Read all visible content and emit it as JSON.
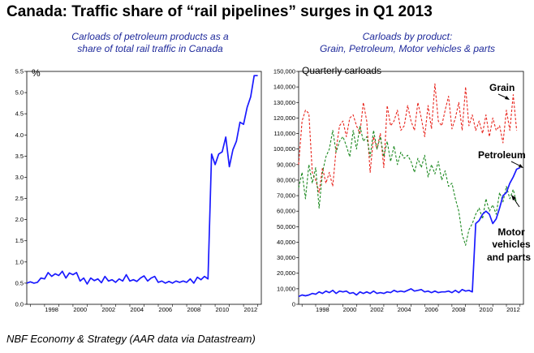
{
  "title": "Canada: Traffic share of “rail pipelines” surges in Q1 2013",
  "footer": "NBF Economy & Strategy (AAR data via Datastream)",
  "chart_data": [
    {
      "type": "line",
      "subtitle_line1": "Carloads of petroleum products as a",
      "subtitle_line2": "share of total rail traffic in Canada",
      "ylabel": "%",
      "ylim": [
        0,
        5.5
      ],
      "yticks": [
        "0.0",
        "0.5",
        "1.0",
        "1.5",
        "2.0",
        "2.5",
        "3.0",
        "3.5",
        "4.0",
        "4.5",
        "5.0",
        "5.5"
      ],
      "xticks": [
        "1998",
        "2000",
        "2002",
        "2004",
        "2006",
        "2008",
        "2010",
        "2012"
      ],
      "xlim": [
        1996.75,
        2013.25
      ],
      "color": "#1a1aff",
      "series": [
        {
          "name": "Petroleum share",
          "x": [
            1996.75,
            1997.0,
            1997.25,
            1997.5,
            1997.75,
            1998.0,
            1998.25,
            1998.5,
            1998.75,
            1999.0,
            1999.25,
            1999.5,
            1999.75,
            2000.0,
            2000.25,
            2000.5,
            2000.75,
            2001.0,
            2001.25,
            2001.5,
            2001.75,
            2002.0,
            2002.25,
            2002.5,
            2002.75,
            2003.0,
            2003.25,
            2003.5,
            2003.75,
            2004.0,
            2004.25,
            2004.5,
            2004.75,
            2005.0,
            2005.25,
            2005.5,
            2005.75,
            2006.0,
            2006.25,
            2006.5,
            2006.75,
            2007.0,
            2007.25,
            2007.5,
            2007.75,
            2008.0,
            2008.25,
            2008.5,
            2008.75,
            2009.0,
            2009.25,
            2009.5,
            2009.75,
            2010.0,
            2010.25,
            2010.5,
            2010.75,
            2011.0,
            2011.25,
            2011.5,
            2011.75,
            2012.0,
            2012.25,
            2012.5,
            2012.75,
            2013.0
          ],
          "values": [
            0.5,
            0.53,
            0.5,
            0.52,
            0.62,
            0.6,
            0.75,
            0.66,
            0.72,
            0.68,
            0.78,
            0.62,
            0.74,
            0.7,
            0.75,
            0.55,
            0.62,
            0.48,
            0.62,
            0.56,
            0.6,
            0.51,
            0.66,
            0.55,
            0.58,
            0.52,
            0.6,
            0.55,
            0.7,
            0.55,
            0.58,
            0.54,
            0.62,
            0.67,
            0.55,
            0.62,
            0.66,
            0.52,
            0.55,
            0.5,
            0.54,
            0.5,
            0.55,
            0.52,
            0.55,
            0.52,
            0.6,
            0.5,
            0.64,
            0.58,
            0.66,
            0.6,
            3.55,
            3.3,
            3.55,
            3.6,
            3.95,
            3.25,
            3.65,
            3.85,
            4.3,
            4.25,
            4.65,
            4.9,
            5.4,
            5.4
          ]
        }
      ]
    },
    {
      "type": "line",
      "subtitle_line1": "Carloads by product:",
      "subtitle_line2": "Grain, Petroleum, Motor vehicles & parts",
      "ylabel": "Quarterly carloads",
      "ylim": [
        0,
        150000
      ],
      "yticks": [
        "0",
        "10,000",
        "20,000",
        "30,000",
        "40,000",
        "50,000",
        "60,000",
        "70,000",
        "80,000",
        "90,000",
        "100,000",
        "110,000",
        "120,000",
        "130,000",
        "140,000",
        "150,000"
      ],
      "xticks": [
        "1998",
        "2000",
        "2002",
        "2004",
        "2006",
        "2008",
        "2010",
        "2012"
      ],
      "xlim": [
        1996.75,
        2013.25
      ],
      "annotations": [
        "Grain",
        "Petroleum",
        "Motor",
        "vehicles",
        "and parts"
      ],
      "series": [
        {
          "name": "Grain",
          "color": "#e8261e",
          "dash": "dashed",
          "x": [
            1996.75,
            1997.0,
            1997.25,
            1997.5,
            1997.75,
            1998.0,
            1998.25,
            1998.5,
            1998.75,
            1999.0,
            1999.25,
            1999.5,
            1999.75,
            2000.0,
            2000.25,
            2000.5,
            2000.75,
            2001.0,
            2001.25,
            2001.5,
            2001.75,
            2002.0,
            2002.25,
            2002.5,
            2002.75,
            2003.0,
            2003.25,
            2003.5,
            2003.75,
            2004.0,
            2004.25,
            2004.5,
            2004.75,
            2005.0,
            2005.25,
            2005.5,
            2005.75,
            2006.0,
            2006.25,
            2006.5,
            2006.75,
            2007.0,
            2007.25,
            2007.5,
            2007.75,
            2008.0,
            2008.25,
            2008.5,
            2008.75,
            2009.0,
            2009.25,
            2009.5,
            2009.75,
            2010.0,
            2010.25,
            2010.5,
            2010.75,
            2011.0,
            2011.25,
            2011.5,
            2011.75,
            2012.0,
            2012.25,
            2012.5,
            2012.75
          ],
          "values": [
            90000,
            118000,
            125000,
            123000,
            85000,
            80000,
            72000,
            88000,
            78000,
            85000,
            76000,
            100000,
            115000,
            118000,
            108000,
            120000,
            122000,
            115000,
            110000,
            130000,
            118000,
            85000,
            108000,
            100000,
            110000,
            88000,
            128000,
            115000,
            118000,
            125000,
            112000,
            115000,
            128000,
            118000,
            112000,
            130000,
            120000,
            108000,
            128000,
            113000,
            142000,
            118000,
            115000,
            125000,
            134000,
            113000,
            120000,
            130000,
            112000,
            140000,
            115000,
            122000,
            112000,
            118000,
            110000,
            122000,
            108000,
            120000,
            112000,
            115000,
            104000,
            125000,
            112000,
            135000,
            112000
          ]
        },
        {
          "name": "Motor vehicles and parts",
          "color": "#1e8a22",
          "dash": "dashed",
          "x": [
            1996.75,
            1997.0,
            1997.25,
            1997.5,
            1997.75,
            1998.0,
            1998.25,
            1998.5,
            1998.75,
            1999.0,
            1999.25,
            1999.5,
            1999.75,
            2000.0,
            2000.25,
            2000.5,
            2000.75,
            2001.0,
            2001.25,
            2001.5,
            2001.75,
            2002.0,
            2002.25,
            2002.5,
            2002.75,
            2003.0,
            2003.25,
            2003.5,
            2003.75,
            2004.0,
            2004.25,
            2004.5,
            2004.75,
            2005.0,
            2005.25,
            2005.5,
            2005.75,
            2006.0,
            2006.25,
            2006.5,
            2006.75,
            2007.0,
            2007.25,
            2007.5,
            2007.75,
            2008.0,
            2008.25,
            2008.5,
            2008.75,
            2009.0,
            2009.25,
            2009.5,
            2009.75,
            2010.0,
            2010.25,
            2010.5,
            2010.75,
            2011.0,
            2011.25,
            2011.5,
            2011.75,
            2012.0,
            2012.25,
            2012.5,
            2012.75
          ],
          "values": [
            75000,
            85000,
            68000,
            90000,
            78000,
            88000,
            62000,
            85000,
            95000,
            100000,
            112000,
            98000,
            105000,
            108000,
            102000,
            95000,
            112000,
            100000,
            115000,
            105000,
            108000,
            95000,
            112000,
            100000,
            108000,
            95000,
            105000,
            92000,
            102000,
            90000,
            98000,
            94000,
            96000,
            92000,
            85000,
            94000,
            88000,
            96000,
            82000,
            90000,
            84000,
            92000,
            80000,
            86000,
            76000,
            78000,
            68000,
            60000,
            45000,
            38000,
            48000,
            52000,
            58000,
            62000,
            55000,
            68000,
            60000,
            64000,
            58000,
            72000,
            66000,
            76000,
            68000,
            74000,
            65000
          ]
        },
        {
          "name": "Petroleum",
          "color": "#1a1aff",
          "dash": "solid",
          "x": [
            1996.75,
            1997.0,
            1997.25,
            1997.5,
            1997.75,
            1998.0,
            1998.25,
            1998.5,
            1998.75,
            1999.0,
            1999.25,
            1999.5,
            1999.75,
            2000.0,
            2000.25,
            2000.5,
            2000.75,
            2001.0,
            2001.25,
            2001.5,
            2001.75,
            2002.0,
            2002.25,
            2002.5,
            2002.75,
            2003.0,
            2003.25,
            2003.5,
            2003.75,
            2004.0,
            2004.25,
            2004.5,
            2004.75,
            2005.0,
            2005.25,
            2005.5,
            2005.75,
            2006.0,
            2006.25,
            2006.5,
            2006.75,
            2007.0,
            2007.25,
            2007.5,
            2007.75,
            2008.0,
            2008.25,
            2008.5,
            2008.75,
            2009.0,
            2009.25,
            2009.5,
            2009.75,
            2010.0,
            2010.25,
            2010.5,
            2010.75,
            2011.0,
            2011.25,
            2011.5,
            2011.75,
            2012.0,
            2012.25,
            2012.5,
            2012.75,
            2013.0
          ],
          "values": [
            5000,
            6000,
            5500,
            6000,
            7000,
            6500,
            8000,
            7000,
            8500,
            7500,
            9000,
            7000,
            8500,
            8000,
            8500,
            7000,
            7500,
            6000,
            8000,
            7000,
            8000,
            7000,
            8500,
            7000,
            7500,
            7000,
            8000,
            7500,
            9000,
            8000,
            8500,
            8000,
            9000,
            10000,
            8500,
            9000,
            9500,
            8000,
            8500,
            7500,
            8500,
            7500,
            8000,
            8000,
            8500,
            7500,
            9000,
            7500,
            9500,
            8500,
            9000,
            8000,
            52000,
            54000,
            58000,
            60000,
            58000,
            52000,
            55000,
            62000,
            70000,
            72000,
            78000,
            82000,
            87000,
            88000
          ]
        }
      ]
    }
  ]
}
